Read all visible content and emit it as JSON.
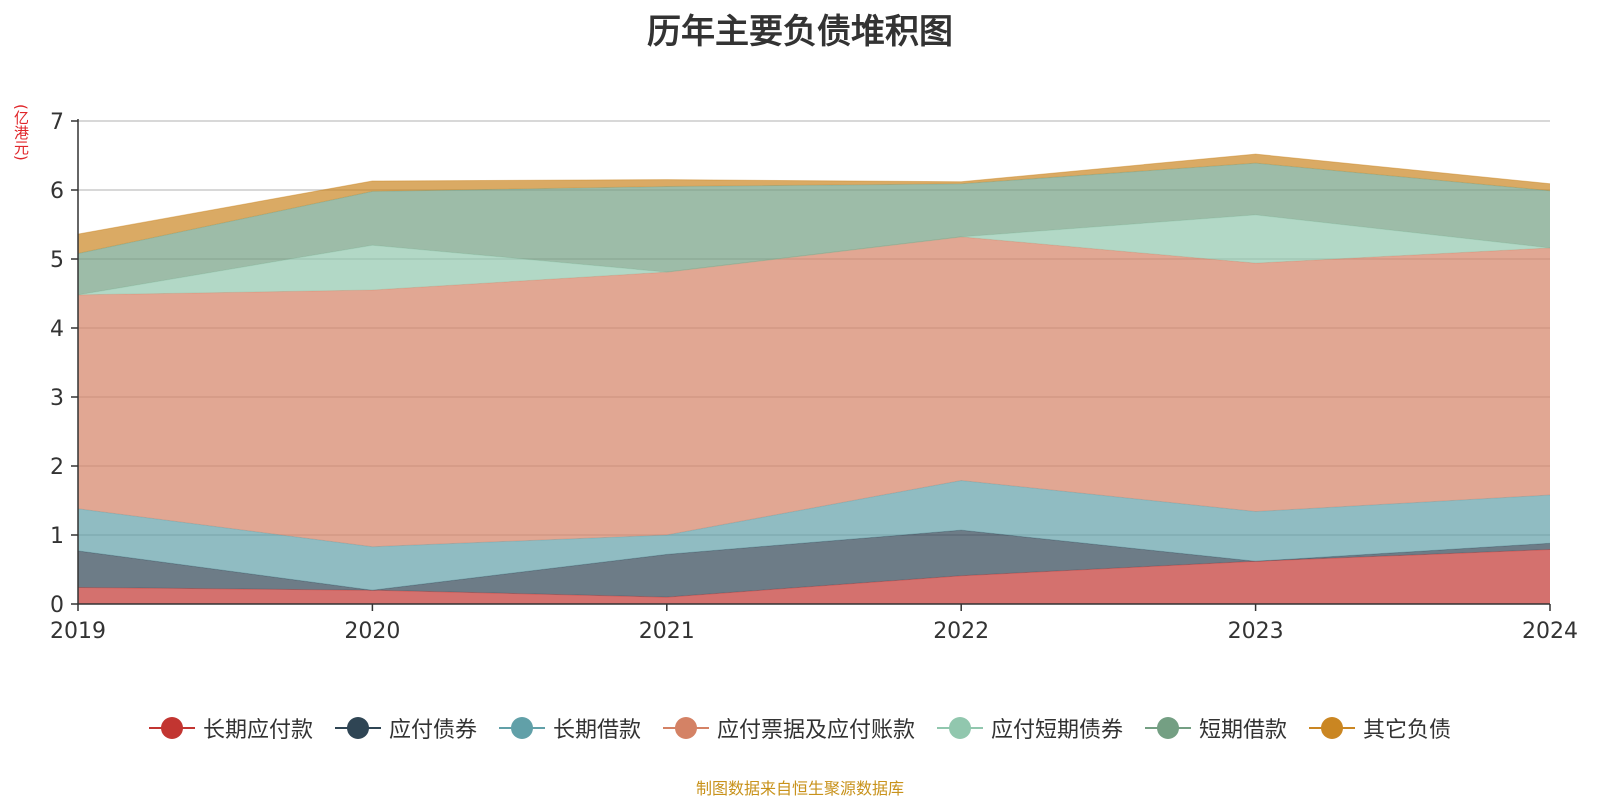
{
  "title": "历年主要负债堆积图",
  "unit_label": "(亿港元)",
  "source_note": "制图数据来自恒生聚源数据库",
  "chart_data": {
    "type": "area",
    "stacked": true,
    "title": "历年主要负债堆积图",
    "ylabel": "(亿港元)",
    "x": [
      "2019",
      "2020",
      "2021",
      "2022",
      "2023",
      "2024"
    ],
    "ylim": [
      0,
      7
    ],
    "yticks": [
      0,
      1,
      2,
      3,
      4,
      5,
      6,
      7
    ],
    "grid": true,
    "legend_position": "bottom",
    "series": [
      {
        "name": "长期应付款",
        "color": "#c23531",
        "values": [
          0.24,
          0.2,
          0.1,
          0.41,
          0.62,
          0.79
        ]
      },
      {
        "name": "应付债券",
        "color": "#2f4554",
        "values": [
          0.53,
          0.0,
          0.62,
          0.66,
          0.0,
          0.09
        ]
      },
      {
        "name": "长期借款",
        "color": "#61a0a8",
        "values": [
          0.61,
          0.63,
          0.28,
          0.72,
          0.72,
          0.7
        ]
      },
      {
        "name": "应付票据及应付账款",
        "color": "#d48265",
        "values": [
          3.1,
          3.72,
          3.81,
          3.53,
          3.6,
          3.58
        ]
      },
      {
        "name": "应付短期债券",
        "color": "#91c7ae",
        "values": [
          0.0,
          0.65,
          0.0,
          0.0,
          0.7,
          0.0
        ]
      },
      {
        "name": "短期借款",
        "color": "#749f83",
        "values": [
          0.6,
          0.78,
          1.24,
          0.77,
          0.75,
          0.83
        ]
      },
      {
        "name": "其它负债",
        "color": "#ca8622",
        "values": [
          0.28,
          0.15,
          0.1,
          0.03,
          0.13,
          0.1
        ]
      }
    ]
  }
}
